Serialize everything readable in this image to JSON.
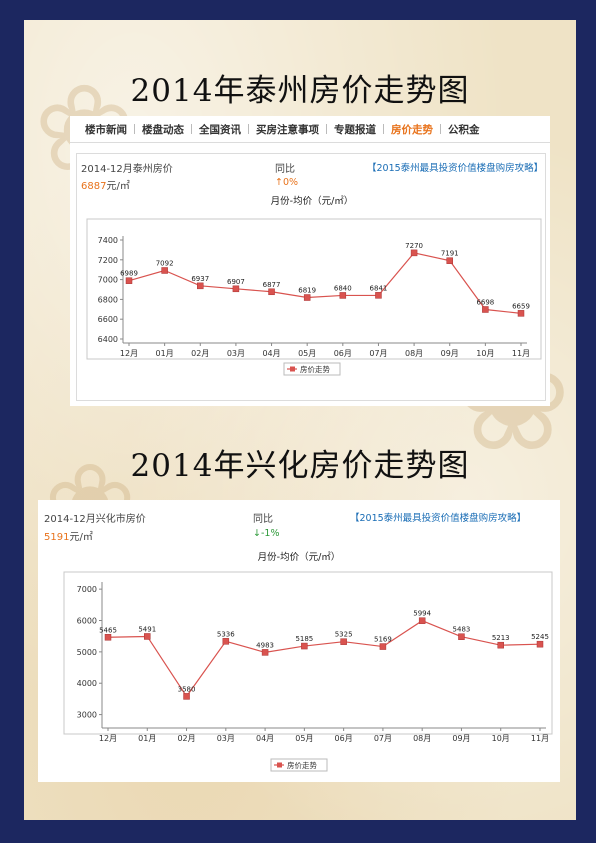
{
  "charts_page": {
    "taizhou": {
      "heading": "2014年泰州房价走势图",
      "nav": [
        "楼市新闻",
        "楼盘动态",
        "全国资讯",
        "买房注意事项",
        "专题报道",
        "房价走势",
        "公积金"
      ],
      "nav_active": 5,
      "city_label": "2014-12月泰州房价",
      "price_value": "6887",
      "price_unit": "元/㎡",
      "compare_label": "同比",
      "change_icon": "up-arrow-icon",
      "change_text": "0%",
      "change_color": "#e8731c",
      "promo_link": "【2015泰州最具投资价值楼盘购房攻略】"
    },
    "xinghua": {
      "heading": "2014年兴化房价走势图",
      "city_label": "2014-12月兴化市房价",
      "price_value": "5191",
      "price_unit": "元/㎡",
      "compare_label": "同比",
      "change_icon": "down-arrow-icon",
      "change_text": "-1%",
      "change_color": "#2e9a3a",
      "promo_link": "【2015泰州最具投资价值楼盘购房攻略】"
    }
  },
  "chart_data": [
    {
      "type": "line",
      "title": "月份-均价（元/㎡）",
      "categories": [
        "12月",
        "01月",
        "02月",
        "03月",
        "04月",
        "05月",
        "06月",
        "07月",
        "08月",
        "09月",
        "10月",
        "11月"
      ],
      "series": [
        {
          "name": "房价走势",
          "values": [
            6989,
            7092,
            6937,
            6907,
            6877,
            6819,
            6840,
            6841,
            7270,
            7191,
            6698,
            6659
          ],
          "color": "#d9534f"
        }
      ],
      "data_labels": [
        "6989",
        "7092",
        "6937",
        "6907",
        "6877",
        "6819",
        "6840",
        "6841",
        "7270",
        "7191",
        "6698",
        "6659"
      ],
      "yticks": [
        6400,
        6600,
        6800,
        7000,
        7200,
        7400
      ],
      "ylim": [
        6400,
        7400
      ],
      "legend": "bottom-center",
      "grid": false
    },
    {
      "type": "line",
      "title": "月份-均价（元/㎡）",
      "categories": [
        "12月",
        "01月",
        "02月",
        "03月",
        "04月",
        "05月",
        "06月",
        "07月",
        "08月",
        "09月",
        "10月",
        "11月"
      ],
      "series": [
        {
          "name": "房价走势",
          "values": [
            5465,
            5491,
            3580,
            5336,
            4983,
            5185,
            5325,
            5169,
            5994,
            5483,
            5213,
            5245
          ],
          "color": "#d9534f"
        }
      ],
      "data_labels": [
        "5465",
        "5491",
        "3580",
        "5336",
        "4983",
        "5185",
        "5325",
        "5169",
        "5994",
        "5483",
        "5213",
        "5245"
      ],
      "yticks": [
        3000,
        4000,
        5000,
        6000,
        7000
      ],
      "ylim": [
        2700,
        7100
      ],
      "legend": "bottom-center",
      "grid": false
    }
  ]
}
